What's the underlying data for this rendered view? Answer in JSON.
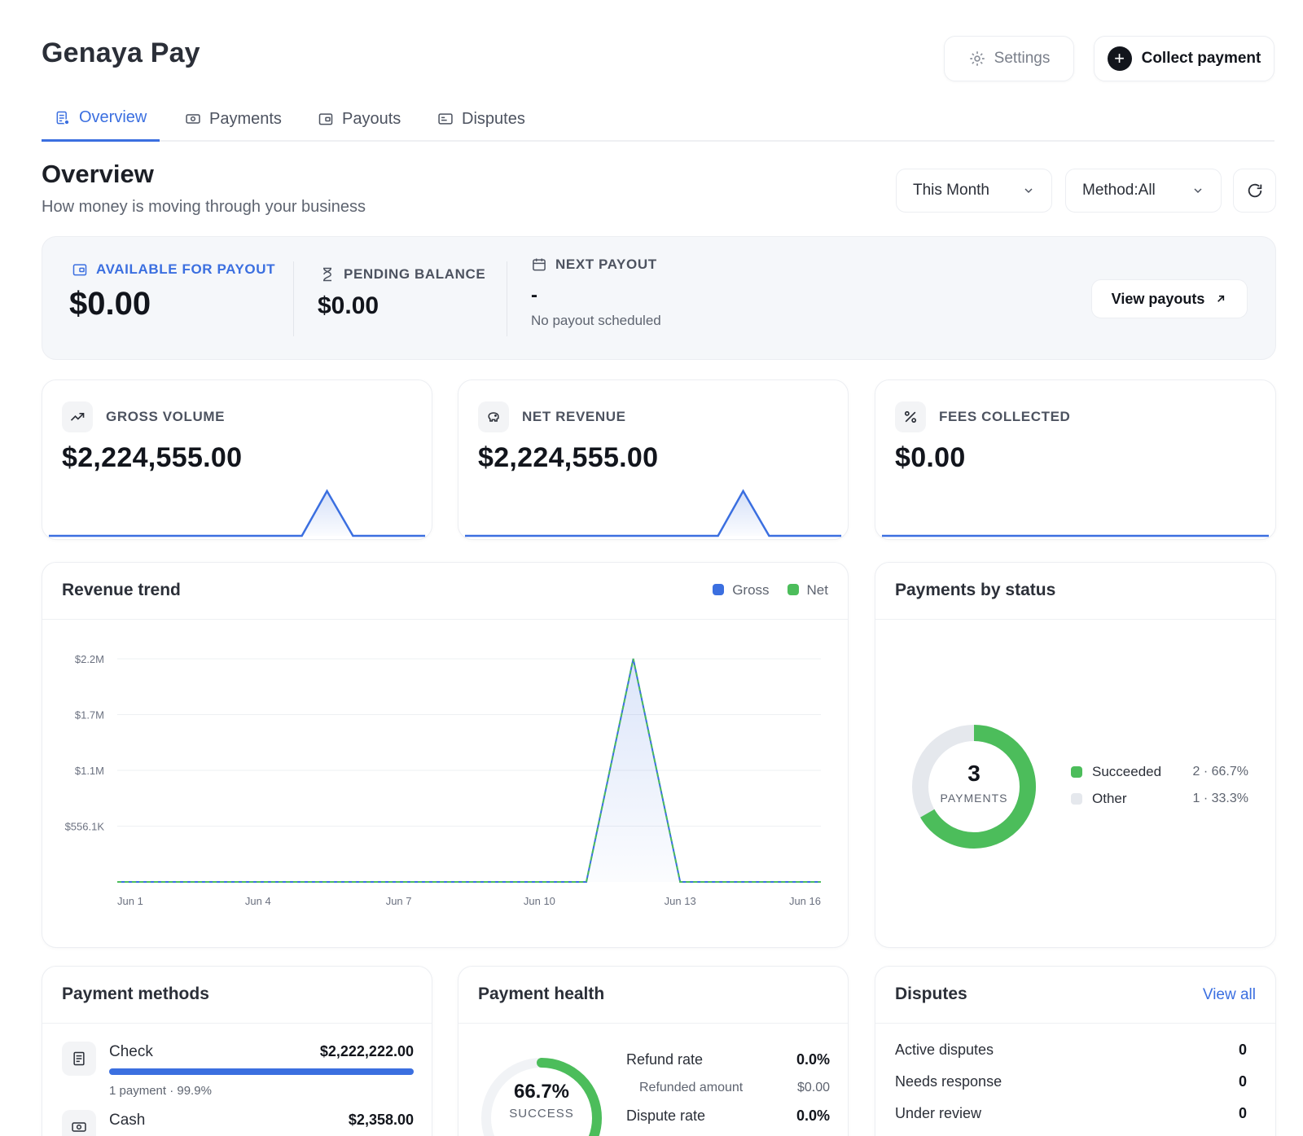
{
  "app": {
    "brand": "Genaya Pay"
  },
  "header": {
    "settings_label": "Settings",
    "collect_label": "Collect payment"
  },
  "tabs": [
    {
      "label": "Overview",
      "active": true,
      "icon": "overview-icon"
    },
    {
      "label": "Payments",
      "active": false,
      "icon": "cash-icon"
    },
    {
      "label": "Payouts",
      "active": false,
      "icon": "wallet-icon"
    },
    {
      "label": "Disputes",
      "active": false,
      "icon": "card-icon"
    }
  ],
  "overview": {
    "title": "Overview",
    "subtitle": "How money is moving through your business",
    "period_select": "This Month",
    "method_select": "Method:All"
  },
  "balance": {
    "available_label": "AVAILABLE FOR PAYOUT",
    "available_value": "$0.00",
    "pending_label": "PENDING BALANCE",
    "pending_value": "$0.00",
    "next_label": "NEXT PAYOUT",
    "next_value": "-",
    "next_note": "No payout scheduled",
    "view_payouts_label": "View payouts"
  },
  "kpis": [
    {
      "label": "GROSS VOLUME",
      "value": "$2,224,555.00",
      "icon": "trend-up-icon"
    },
    {
      "label": "NET REVENUE",
      "value": "$2,224,555.00",
      "icon": "piggy-bank-icon"
    },
    {
      "label": "FEES COLLECTED",
      "value": "$0.00",
      "icon": "percent-icon"
    }
  ],
  "revenue_trend": {
    "title": "Revenue trend",
    "legend": [
      {
        "name": "Gross",
        "color": "#3b6fe0"
      },
      {
        "name": "Net",
        "color": "#4cbd5b"
      }
    ]
  },
  "chart_data": {
    "type": "area",
    "title": "Revenue trend",
    "x_tick_labels": [
      "Jun 1",
      "Jun 4",
      "Jun 7",
      "Jun 10",
      "Jun 13",
      "Jun 16"
    ],
    "y_tick_labels": [
      "$2.2M",
      "$1.7M",
      "$1.1M",
      "$556.1K"
    ],
    "y_ticks": [
      2224555,
      1668416,
      1112278,
      556139
    ],
    "ylim": [
      0,
      2224555
    ],
    "x": [
      "Jun 1",
      "Jun 2",
      "Jun 3",
      "Jun 4",
      "Jun 5",
      "Jun 6",
      "Jun 7",
      "Jun 8",
      "Jun 9",
      "Jun 10",
      "Jun 11",
      "Jun 12",
      "Jun 13",
      "Jun 14",
      "Jun 15",
      "Jun 16"
    ],
    "series": [
      {
        "name": "Gross",
        "color": "#3b6fe0",
        "values": [
          0,
          0,
          0,
          0,
          0,
          0,
          0,
          0,
          0,
          0,
          0,
          2224555,
          0,
          0,
          0,
          0
        ]
      },
      {
        "name": "Net",
        "color": "#4cbd5b",
        "values": [
          0,
          0,
          0,
          0,
          0,
          0,
          0,
          0,
          0,
          0,
          0,
          2224555,
          0,
          0,
          0,
          0
        ]
      }
    ],
    "grid": true,
    "legend_position": "top-right"
  },
  "payments_by_status": {
    "title": "Payments by status",
    "total": "3",
    "total_label": "PAYMENTS",
    "items": [
      {
        "name": "Succeeded",
        "value": "2 · 66.7%",
        "fraction": 0.667,
        "color": "#4cbd5b"
      },
      {
        "name": "Other",
        "value": "1 · 33.3%",
        "fraction": 0.333,
        "color": "#e5e8ed"
      }
    ]
  },
  "payment_methods": {
    "title": "Payment methods",
    "items": [
      {
        "name": "Check",
        "amount": "$2,222,222.00",
        "meta": "1 payment · 99.9%",
        "fraction": 0.999,
        "icon": "check-doc-icon"
      },
      {
        "name": "Cash",
        "amount": "$2,358.00",
        "meta": "",
        "fraction": 0.001,
        "icon": "cash-icon"
      }
    ]
  },
  "payment_health": {
    "title": "Payment health",
    "success_value": "66.7%",
    "success_fraction": 0.667,
    "success_label": "SUCCESS",
    "rows": [
      {
        "label": "Refund rate",
        "value": "0.0%"
      },
      {
        "label": "Refunded amount",
        "value": "$0.00"
      },
      {
        "label": "Dispute rate",
        "value": "0.0%"
      }
    ]
  },
  "disputes": {
    "title": "Disputes",
    "view_all": "View all",
    "rows": [
      {
        "label": "Active disputes",
        "value": "0"
      },
      {
        "label": "Needs response",
        "value": "0"
      },
      {
        "label": "Under review",
        "value": "0"
      }
    ]
  },
  "colors": {
    "accent": "#3b6fe0",
    "success": "#4cbd5b",
    "muted": "#e5e8ed"
  }
}
